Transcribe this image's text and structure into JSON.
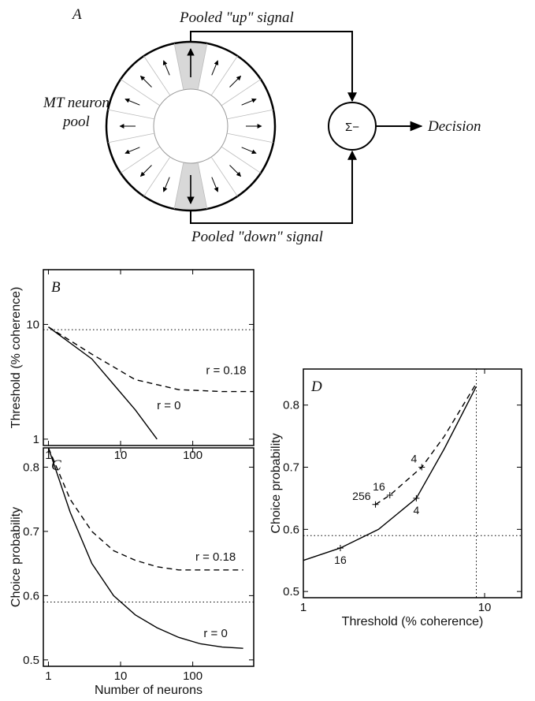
{
  "diagram": {
    "panel_label": "A",
    "pool_label": [
      "MT neuron",
      "pool"
    ],
    "up_label": "Pooled \"up\" signal",
    "down_label": "Pooled \"down\" signal",
    "sum_label": "Σ−",
    "output_label": "Decision"
  },
  "chart_data": [
    {
      "type": "line",
      "panel_label": "B",
      "ylabel": "Threshold (% coherence)",
      "xscale": "log",
      "yscale": "log",
      "xlim": [
        0.85,
        700
      ],
      "ylim": [
        0.88,
        30
      ],
      "xticks": [
        1,
        10,
        100
      ],
      "yticks": [
        1,
        10
      ],
      "ref_lines": {
        "y": [
          9
        ]
      },
      "series": [
        {
          "name": "r = 0.18",
          "color": "#000000",
          "dash": true,
          "x": [
            1,
            4,
            16,
            64,
            256,
            700
          ],
          "values": [
            9.5,
            5.5,
            3.3,
            2.7,
            2.6,
            2.6
          ]
        },
        {
          "name": "r = 0",
          "color": "#000000",
          "dash": false,
          "x": [
            1,
            4,
            8,
            16,
            32
          ],
          "values": [
            9.5,
            5,
            3,
            1.8,
            1
          ]
        }
      ]
    },
    {
      "type": "line",
      "panel_label": "C",
      "ylabel": "Choice probability",
      "xlabel": "Number of neurons",
      "xscale": "log",
      "yscale": "linear",
      "xlim": [
        0.85,
        700
      ],
      "ylim": [
        0.49,
        0.83
      ],
      "xticks": [
        1,
        10,
        100
      ],
      "yticks": [
        0.5,
        0.6,
        0.7,
        0.8
      ],
      "ref_lines": {
        "y": [
          0.59
        ]
      },
      "series": [
        {
          "name": "r = 0.18",
          "color": "#000000",
          "dash": true,
          "x": [
            1,
            2,
            4,
            8,
            16,
            32,
            64,
            128,
            256,
            500
          ],
          "values": [
            0.83,
            0.75,
            0.7,
            0.67,
            0.655,
            0.645,
            0.64,
            0.64,
            0.64,
            0.64
          ]
        },
        {
          "name": "r = 0",
          "color": "#000000",
          "dash": false,
          "x": [
            1,
            2,
            4,
            8,
            16,
            32,
            64,
            128,
            256,
            500
          ],
          "values": [
            0.83,
            0.73,
            0.65,
            0.6,
            0.57,
            0.55,
            0.535,
            0.525,
            0.52,
            0.518
          ]
        }
      ]
    },
    {
      "type": "line",
      "panel_label": "D",
      "ylabel": "Choice probability",
      "xlabel": "Threshold (% coherence)",
      "xscale": "log",
      "yscale": "linear",
      "xlim": [
        1,
        16
      ],
      "ylim": [
        0.49,
        0.858
      ],
      "xticks": [
        1,
        10
      ],
      "yticks": [
        0.5,
        0.6,
        0.7,
        0.8
      ],
      "ref_lines": {
        "x": [
          9
        ],
        "y": [
          0.59
        ]
      },
      "series": [
        {
          "color": "#000000",
          "dash": true,
          "x": [
            2.5,
            3,
            4.5,
            6,
            9
          ],
          "values": [
            0.64,
            0.655,
            0.7,
            0.75,
            0.835
          ]
        },
        {
          "color": "#000000",
          "dash": false,
          "x": [
            1,
            1.6,
            2.6,
            4.2,
            6,
            9
          ],
          "values": [
            0.55,
            0.57,
            0.6,
            0.65,
            0.73,
            0.83
          ]
        }
      ],
      "annotations": [
        {
          "text": "16",
          "x": 1.6,
          "y": 0.57
        },
        {
          "text": "4",
          "x": 4.2,
          "y": 0.65
        },
        {
          "text": "256",
          "x": 2.5,
          "y": 0.64
        },
        {
          "text": "16",
          "x": 3,
          "y": 0.655
        },
        {
          "text": "4",
          "x": 4.5,
          "y": 0.7
        }
      ]
    }
  ]
}
